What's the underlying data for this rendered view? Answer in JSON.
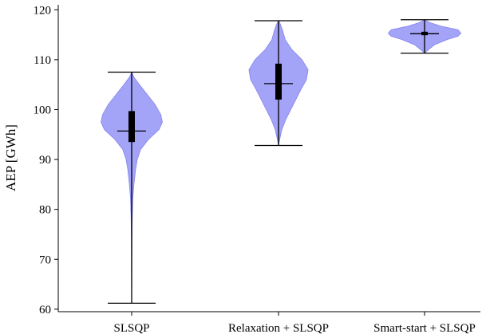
{
  "chart_data": {
    "type": "violin",
    "title": "",
    "xlabel": "",
    "ylabel": "AEP [GWh]",
    "ylim": [
      59.5,
      121
    ],
    "yticks": [
      60,
      70,
      80,
      90,
      100,
      110,
      120
    ],
    "grid": false,
    "color": "#9A9AF7",
    "edge_color": "#7777EE",
    "categories": [
      "SLSQP",
      "Relaxation + SLSQP",
      "Smart-start + SLSQP"
    ],
    "violins": [
      {
        "name": "SLSQP",
        "min": 61.2,
        "max": 107.5,
        "median": 95.7,
        "q1": 93.5,
        "q3": 99.7,
        "density": [
          [
            61.2,
            0.0
          ],
          [
            63,
            0.002
          ],
          [
            66,
            0.003
          ],
          [
            70,
            0.004
          ],
          [
            74,
            0.006
          ],
          [
            78,
            0.01
          ],
          [
            82,
            0.02
          ],
          [
            85,
            0.04
          ],
          [
            88,
            0.07
          ],
          [
            90,
            0.1
          ],
          [
            92,
            0.16
          ],
          [
            94,
            0.3
          ],
          [
            96,
            0.49
          ],
          [
            97.5,
            0.55
          ],
          [
            99,
            0.52
          ],
          [
            101,
            0.42
          ],
          [
            103,
            0.28
          ],
          [
            105,
            0.14
          ],
          [
            106.5,
            0.04
          ],
          [
            107.5,
            0.0
          ]
        ]
      },
      {
        "name": "Relaxation + SLSQP",
        "min": 92.8,
        "max": 117.8,
        "median": 105.2,
        "q1": 102.0,
        "q3": 109.2,
        "density": [
          [
            92.8,
            0.0
          ],
          [
            94,
            0.02
          ],
          [
            96,
            0.06
          ],
          [
            98,
            0.13
          ],
          [
            100,
            0.22
          ],
          [
            102,
            0.31
          ],
          [
            104,
            0.4
          ],
          [
            106,
            0.5
          ],
          [
            108,
            0.53
          ],
          [
            110,
            0.42
          ],
          [
            112,
            0.24
          ],
          [
            114,
            0.12
          ],
          [
            116,
            0.07
          ],
          [
            117.2,
            0.03
          ],
          [
            117.8,
            0.0
          ]
        ]
      },
      {
        "name": "Smart-start + SLSQP",
        "min": 111.3,
        "max": 118.0,
        "median": 115.2,
        "q1": 114.9,
        "q3": 115.6,
        "density": [
          [
            111.3,
            0.0
          ],
          [
            112,
            0.07
          ],
          [
            113,
            0.18
          ],
          [
            114,
            0.4
          ],
          [
            114.7,
            0.6
          ],
          [
            115.3,
            0.65
          ],
          [
            116,
            0.6
          ],
          [
            116.7,
            0.3
          ],
          [
            117.4,
            0.1
          ],
          [
            118.0,
            0.0
          ]
        ]
      }
    ]
  }
}
